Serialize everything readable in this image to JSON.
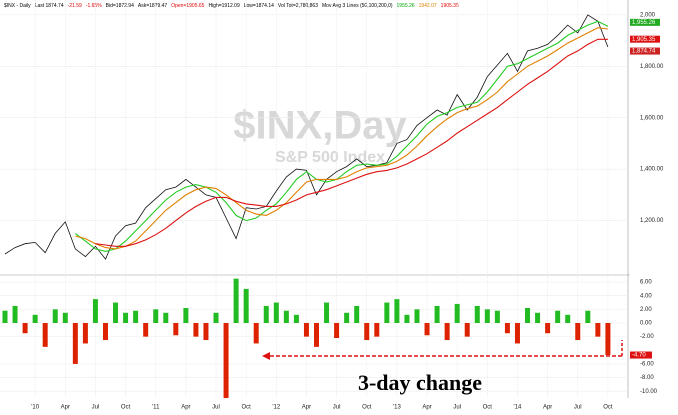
{
  "chart_data": [
    {
      "type": "line",
      "title": "$INX,Day",
      "subtitle": "S&P 500 Index",
      "header": [
        "$INX - Daily",
        "Last 1874.74",
        "-21.59",
        "-1.65%",
        "Bid=1872.94",
        "Ask=1879.47",
        "Open=1905.65",
        "High=1912.09",
        "Low=1874.14",
        "Vol Tot=2,780,863",
        "Mov Avg 3 Lines (50,100,200,0)",
        "1955.26",
        "1942.07",
        "1905.35"
      ],
      "header_colors": [
        "#000",
        "#000",
        "#d00",
        "#d00",
        "#000",
        "#000",
        "#d00",
        "#000",
        "#000",
        "#000",
        "#000",
        "#0a0",
        "#e08000",
        "#d00"
      ],
      "xlim": [
        -3,
        59
      ],
      "xticks": [
        {
          "value": 0,
          "label": "'10"
        },
        {
          "value": 3,
          "label": "Apr"
        },
        {
          "value": 6,
          "label": "Jul"
        },
        {
          "value": 9,
          "label": "Oct"
        },
        {
          "value": 12,
          "label": "'11"
        },
        {
          "value": 15,
          "label": "Apr"
        },
        {
          "value": 18,
          "label": "Jul"
        },
        {
          "value": 21,
          "label": "Oct"
        },
        {
          "value": 24,
          "label": "'12"
        },
        {
          "value": 27,
          "label": "Apr"
        },
        {
          "value": 30,
          "label": "Jul"
        },
        {
          "value": 33,
          "label": "Oct"
        },
        {
          "value": 36,
          "label": "'13"
        },
        {
          "value": 39,
          "label": "Apr"
        },
        {
          "value": 42,
          "label": "Jul"
        },
        {
          "value": 45,
          "label": "Oct"
        },
        {
          "value": 48,
          "label": "'14"
        },
        {
          "value": 51,
          "label": "Apr"
        },
        {
          "value": 54,
          "label": "Jul"
        },
        {
          "value": 57,
          "label": "Oct"
        }
      ],
      "ylim": [
        1000,
        2050
      ],
      "yticks": [
        {
          "value": 2000,
          "label": "2,000"
        },
        {
          "value": 1800,
          "label": "1,800.00"
        },
        {
          "value": 1600,
          "label": "1,600.00"
        },
        {
          "value": 1400,
          "label": "1,400.00"
        },
        {
          "value": 1200,
          "label": "1,200.00"
        }
      ],
      "grid": true,
      "x": [
        -3,
        -2,
        -1,
        0,
        1,
        2,
        3,
        4,
        5,
        6,
        7,
        8,
        9,
        10,
        11,
        12,
        13,
        14,
        15,
        16,
        17,
        18,
        19,
        20,
        21,
        22,
        23,
        24,
        25,
        26,
        27,
        28,
        29,
        30,
        31,
        32,
        33,
        34,
        35,
        36,
        37,
        38,
        39,
        40,
        41,
        42,
        43,
        44,
        45,
        46,
        47,
        48,
        49,
        50,
        51,
        52,
        53,
        54,
        55,
        56,
        57
      ],
      "series": [
        {
          "name": "$INX",
          "color": "#111",
          "values": [
            1070,
            1095,
            1110,
            1115,
            1075,
            1150,
            1195,
            1090,
            1060,
            1100,
            1050,
            1140,
            1180,
            1190,
            1250,
            1285,
            1320,
            1330,
            1360,
            1330,
            1300,
            1290,
            1210,
            1130,
            1250,
            1245,
            1255,
            1315,
            1370,
            1400,
            1395,
            1300,
            1360,
            1390,
            1410,
            1440,
            1410,
            1415,
            1425,
            1500,
            1515,
            1570,
            1600,
            1630,
            1610,
            1690,
            1630,
            1680,
            1760,
            1805,
            1850,
            1780,
            1860,
            1870,
            1885,
            1920,
            1960,
            1930,
            2000,
            1975,
            1875
          ]
        },
        {
          "name": "MA 50",
          "color": "#22cc22",
          "values": [
            null,
            null,
            null,
            null,
            null,
            null,
            null,
            1150,
            1120,
            1090,
            1080,
            1090,
            1120,
            1160,
            1200,
            1240,
            1280,
            1310,
            1330,
            1340,
            1330,
            1310,
            1270,
            1220,
            1200,
            1210,
            1240,
            1265,
            1310,
            1360,
            1390,
            1360,
            1350,
            1360,
            1390,
            1415,
            1420,
            1415,
            1420,
            1450,
            1490,
            1530,
            1575,
            1605,
            1620,
            1640,
            1650,
            1660,
            1700,
            1750,
            1800,
            1810,
            1830,
            1850,
            1870,
            1890,
            1920,
            1940,
            1960,
            1975,
            1955
          ]
        },
        {
          "name": "MA 100",
          "color": "#e08000",
          "values": [
            null,
            null,
            null,
            null,
            null,
            null,
            null,
            1140,
            1130,
            1110,
            1095,
            1090,
            1100,
            1120,
            1160,
            1200,
            1240,
            1270,
            1300,
            1320,
            1330,
            1325,
            1300,
            1270,
            1240,
            1225,
            1220,
            1240,
            1270,
            1310,
            1350,
            1360,
            1360,
            1360,
            1370,
            1390,
            1405,
            1410,
            1415,
            1430,
            1455,
            1490,
            1530,
            1565,
            1595,
            1620,
            1635,
            1645,
            1670,
            1700,
            1740,
            1770,
            1800,
            1820,
            1840,
            1865,
            1890,
            1910,
            1930,
            1950,
            1945
          ]
        },
        {
          "name": "MA 200",
          "color": "#dd1111",
          "values": [
            null,
            null,
            null,
            null,
            null,
            null,
            null,
            null,
            null,
            1110,
            1105,
            1100,
            1100,
            1110,
            1125,
            1145,
            1170,
            1200,
            1230,
            1255,
            1275,
            1290,
            1290,
            1275,
            1265,
            1260,
            1255,
            1255,
            1265,
            1280,
            1300,
            1310,
            1320,
            1335,
            1350,
            1365,
            1380,
            1390,
            1395,
            1405,
            1420,
            1440,
            1460,
            1485,
            1510,
            1540,
            1565,
            1590,
            1615,
            1640,
            1670,
            1700,
            1730,
            1755,
            1780,
            1810,
            1840,
            1860,
            1885,
            1905,
            1905
          ]
        }
      ],
      "price_markers": [
        {
          "value": 1955.26,
          "label": "1,955.26",
          "color": "#22aa22"
        },
        {
          "value": 1905.35,
          "label": "1,905.35",
          "color": "#dd1111"
        },
        {
          "value": 1874.74,
          "label": "1,874.74",
          "color": "#cc2222"
        }
      ]
    },
    {
      "type": "bar",
      "annotation": "3-day change",
      "color_up": "#22bb22",
      "color_down": "#dd2200",
      "ylim": [
        -11,
        6.6
      ],
      "yticks": [
        {
          "value": 6,
          "label": "6.00"
        },
        {
          "value": 4,
          "label": "4.00"
        },
        {
          "value": 2,
          "label": "2.00"
        },
        {
          "value": 0,
          "label": "0.00"
        },
        {
          "value": -2,
          "label": "-2.00"
        },
        {
          "value": -6,
          "label": "-6.00"
        },
        {
          "value": -8,
          "label": "-8.00"
        },
        {
          "value": -10,
          "label": "-10.00"
        }
      ],
      "last_marker": {
        "value": -4.7,
        "label": "-4.70"
      },
      "values": [
        1.8,
        2.5,
        -1.5,
        1.2,
        -3.5,
        2.0,
        1.5,
        -6.0,
        -3.0,
        3.5,
        -2.5,
        3.0,
        1.5,
        1.8,
        -2.0,
        2.0,
        1.5,
        -1.8,
        2.2,
        -2.0,
        -2.5,
        1.5,
        -11.0,
        6.5,
        5.0,
        -3.0,
        2.5,
        3.0,
        1.8,
        1.2,
        -2.0,
        -3.5,
        3.0,
        -2.2,
        1.5,
        2.5,
        -2.5,
        -2.0,
        3.0,
        3.5,
        1.2,
        2.0,
        -1.8,
        2.5,
        -2.5,
        2.8,
        -2.0,
        2.5,
        2.0,
        1.8,
        -1.5,
        -3.0,
        2.2,
        1.5,
        -1.5,
        1.8,
        1.2,
        -2.5,
        1.8,
        -2.0,
        -4.7
      ]
    }
  ]
}
